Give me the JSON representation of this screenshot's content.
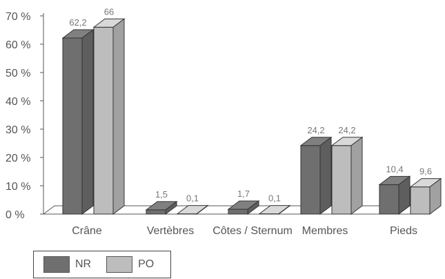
{
  "chart_data": {
    "type": "bar",
    "categories": [
      "Crâne",
      "Vertèbres",
      "Côtes / Sternum",
      "Membres",
      "Pieds"
    ],
    "series": [
      {
        "name": "NR",
        "values": [
          62.2,
          1.5,
          1.7,
          24.2,
          10.4
        ],
        "labels": [
          "62,2",
          "1,5",
          "1,7",
          "24,2",
          "10,4"
        ],
        "color": "#6f6f6f"
      },
      {
        "name": "PO",
        "values": [
          66,
          0.1,
          0.1,
          24.2,
          9.6
        ],
        "labels": [
          "66",
          "0,1",
          "0,1",
          "24,2",
          "9,6"
        ],
        "color": "#bdbdbd"
      }
    ],
    "yticks": [
      "0 %",
      "10 %",
      "20 %",
      "30 %",
      "40 %",
      "50 %",
      "60 %",
      "70 %"
    ],
    "ylim": [
      0,
      70
    ],
    "title": "",
    "xlabel": "",
    "ylabel": "",
    "legend_position": "bottom-left",
    "grid": false
  }
}
